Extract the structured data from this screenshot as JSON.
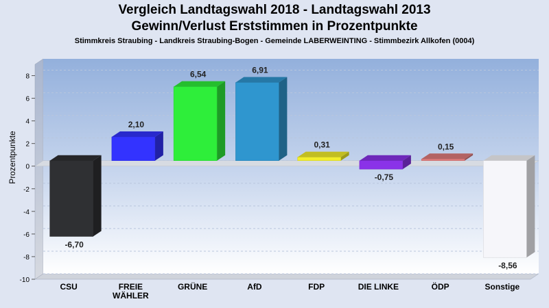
{
  "title": "Vergleich Landtagswahl 2018 - Landtagswahl 2013",
  "subtitle": "Gewinn/Verlust Erststimmen in Prozentpunkte",
  "caption": "Stimmkreis Straubing - Landkreis Straubing-Bogen - Gemeinde LABERWEINTING - Stimmbezirk Allkofen (0004)",
  "chart_data": {
    "type": "bar",
    "ylabel": "Prozentpunkte",
    "xlabel": "",
    "ylim": [
      -10,
      9
    ],
    "yticks": [
      8,
      6,
      4,
      2,
      0,
      -2,
      -4,
      -6,
      -8,
      -10
    ],
    "grid": true,
    "categories": [
      "CSU",
      "FREIE WÄHLER",
      "GRÜNE",
      "AfD",
      "FDP",
      "DIE LINKE",
      "ÖDP",
      "Sonstige"
    ],
    "category_lines": [
      [
        "CSU"
      ],
      [
        "FREIE",
        "WÄHLER"
      ],
      [
        "GRÜNE"
      ],
      [
        "AfD"
      ],
      [
        "FDP"
      ],
      [
        "DIE LINKE"
      ],
      [
        "ÖDP"
      ],
      [
        "Sonstige"
      ]
    ],
    "values": [
      -6.7,
      2.1,
      6.54,
      6.91,
      0.31,
      -0.75,
      0.15,
      -8.56
    ],
    "value_labels": [
      "-6,70",
      "2,10",
      "6,54",
      "6,91",
      "0,31",
      "-0,75",
      "0,15",
      "-8,56"
    ],
    "colors": [
      "#2f3033",
      "#3333ff",
      "#2eee3a",
      "#2f96cf",
      "#f2ee2a",
      "#8a32e8",
      "#e07c7c",
      "#f6f6fa"
    ]
  }
}
